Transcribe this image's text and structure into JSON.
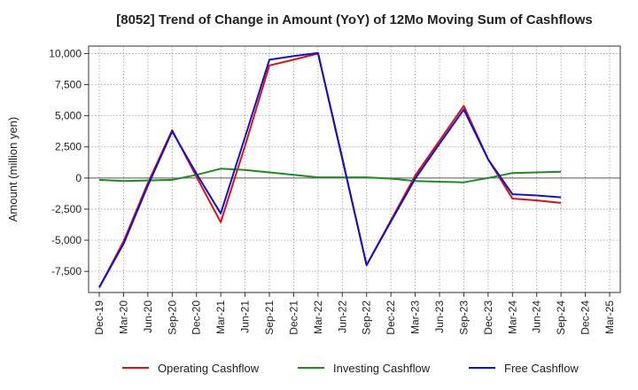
{
  "chart_data": {
    "type": "line",
    "title": "[8052]  Trend of Change in Amount (YoY) of 12Mo Moving Sum of Cashflows",
    "xlabel": "",
    "ylabel": "Amount (million yen)",
    "ylim": [
      -9200,
      10600
    ],
    "yticks": [
      10000,
      7500,
      5000,
      2500,
      0,
      -2500,
      -5000,
      -7500
    ],
    "ytick_labels": [
      "10,000",
      "7,500",
      "5,000",
      "2,500",
      "0",
      "-2,500",
      "-5,000",
      "-7,500"
    ],
    "categories": [
      "Dec-19",
      "Mar-20",
      "Jun-20",
      "Sep-20",
      "Dec-20",
      "Mar-21",
      "Jun-21",
      "Sep-21",
      "Dec-21",
      "Mar-22",
      "Jun-22",
      "Sep-22",
      "Dec-22",
      "Mar-23",
      "Jun-23",
      "Sep-23",
      "Dec-23",
      "Mar-24",
      "Jun-24",
      "Sep-24",
      "Dec-24",
      "Mar-25"
    ],
    "grid": true,
    "legend_position": "bottom",
    "series": [
      {
        "name": "Operating Cashflow",
        "color": "#dd1111",
        "values": [
          -8800,
          -5100,
          -400,
          3850,
          100,
          -3550,
          2600,
          9050,
          9500,
          10000,
          1500,
          -7000,
          -3400,
          200,
          3000,
          5800,
          1500,
          -1650,
          -1800,
          -2000,
          null,
          null
        ]
      },
      {
        "name": "Investing Cashflow",
        "color": "#228822",
        "values": [
          -150,
          -250,
          -200,
          -150,
          250,
          750,
          650,
          450,
          250,
          50,
          50,
          50,
          -50,
          -250,
          -300,
          -350,
          0,
          400,
          450,
          500,
          null,
          null
        ]
      },
      {
        "name": "Free Cashflow",
        "color": "#1111cc",
        "values": [
          -8800,
          -5300,
          -600,
          3750,
          350,
          -2850,
          3300,
          9500,
          9800,
          10050,
          1600,
          -7000,
          -3500,
          -50,
          2750,
          5500,
          1500,
          -1300,
          -1400,
          -1550,
          null,
          null
        ]
      }
    ]
  }
}
